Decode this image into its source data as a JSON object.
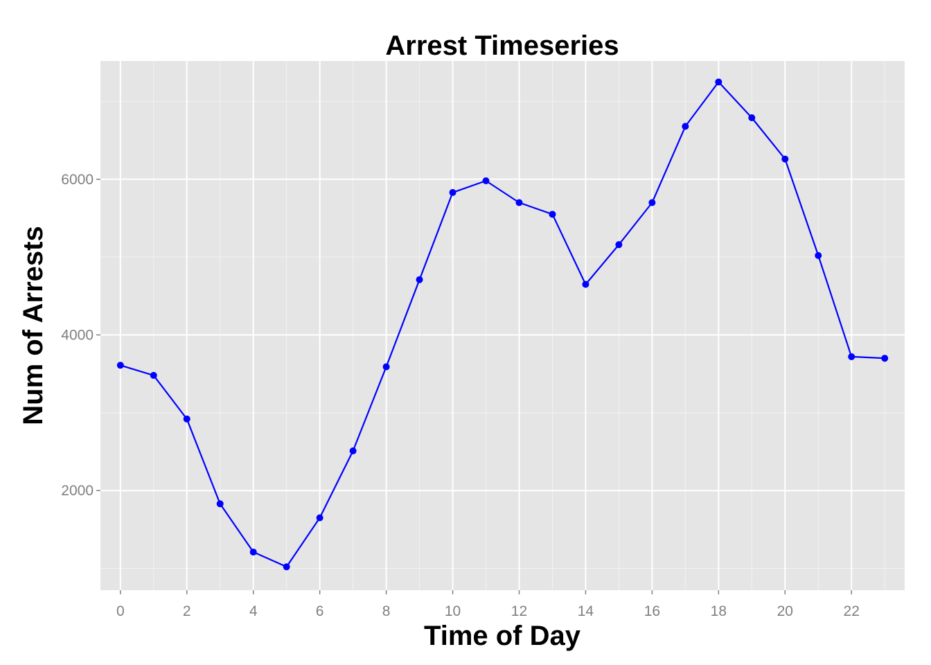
{
  "chart_data": {
    "type": "line",
    "title": "Arrest Timeseries",
    "xlabel": "Time of Day",
    "ylabel": "Num of Arrests",
    "xlim": [
      -0.6,
      23.6
    ],
    "ylim": [
      720,
      7520
    ],
    "x_ticks": [
      0,
      2,
      4,
      6,
      8,
      10,
      12,
      14,
      16,
      18,
      20,
      22
    ],
    "x_tick_labels": [
      "0",
      "2",
      "4",
      "6",
      "8",
      "10",
      "12",
      "14",
      "16",
      "18",
      "20",
      "22"
    ],
    "y_ticks": [
      2000,
      4000,
      6000
    ],
    "y_tick_labels": [
      "2000",
      "4000",
      "6000"
    ],
    "y_minor_ticks": [
      1000,
      3000,
      5000,
      7000
    ],
    "grid": true,
    "series": [
      {
        "color": "#0000ff",
        "x": [
          0,
          1,
          2,
          3,
          4,
          5,
          6,
          7,
          8,
          9,
          10,
          11,
          12,
          13,
          14,
          15,
          16,
          17,
          18,
          19,
          20,
          21,
          22,
          23
        ],
        "y": [
          3610,
          3480,
          2920,
          1830,
          1210,
          1020,
          1650,
          2510,
          3590,
          4710,
          5830,
          5980,
          5700,
          5550,
          4650,
          5160,
          5700,
          6680,
          7250,
          6790,
          6260,
          5020,
          3720,
          3700
        ]
      }
    ]
  },
  "colors": {
    "panel_background": "#e5e5e5",
    "grid_major": "#ffffff",
    "grid_minor": "#f2f2f2",
    "tick_label": "#7f7f7f"
  }
}
